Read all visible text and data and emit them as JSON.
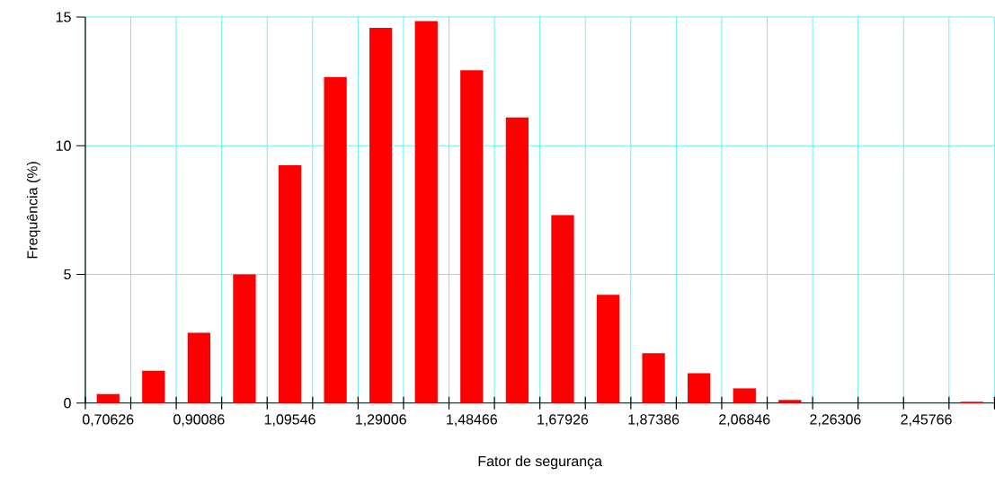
{
  "chart_data": {
    "type": "bar",
    "xlabel": "Fator de segurança",
    "ylabel": "Frequência (%)",
    "categories": [
      "0,70626",
      null,
      "0,90086",
      null,
      "1,09546",
      null,
      "1,29006",
      null,
      "1,48466",
      null,
      "1,67926",
      null,
      "1,87386",
      null,
      "2,06846",
      null,
      "2,26306",
      null,
      "2,45766",
      null
    ],
    "values": [
      0.35,
      1.26,
      2.73,
      5.0,
      9.24,
      12.67,
      14.58,
      14.84,
      12.93,
      11.1,
      7.3,
      4.21,
      1.94,
      1.16,
      0.57,
      0.12,
      0,
      0,
      0,
      0.05
    ],
    "color": "#ff0000",
    "ylim": [
      0,
      15
    ],
    "yticks": [
      0,
      5,
      10,
      15
    ],
    "grid": true
  }
}
